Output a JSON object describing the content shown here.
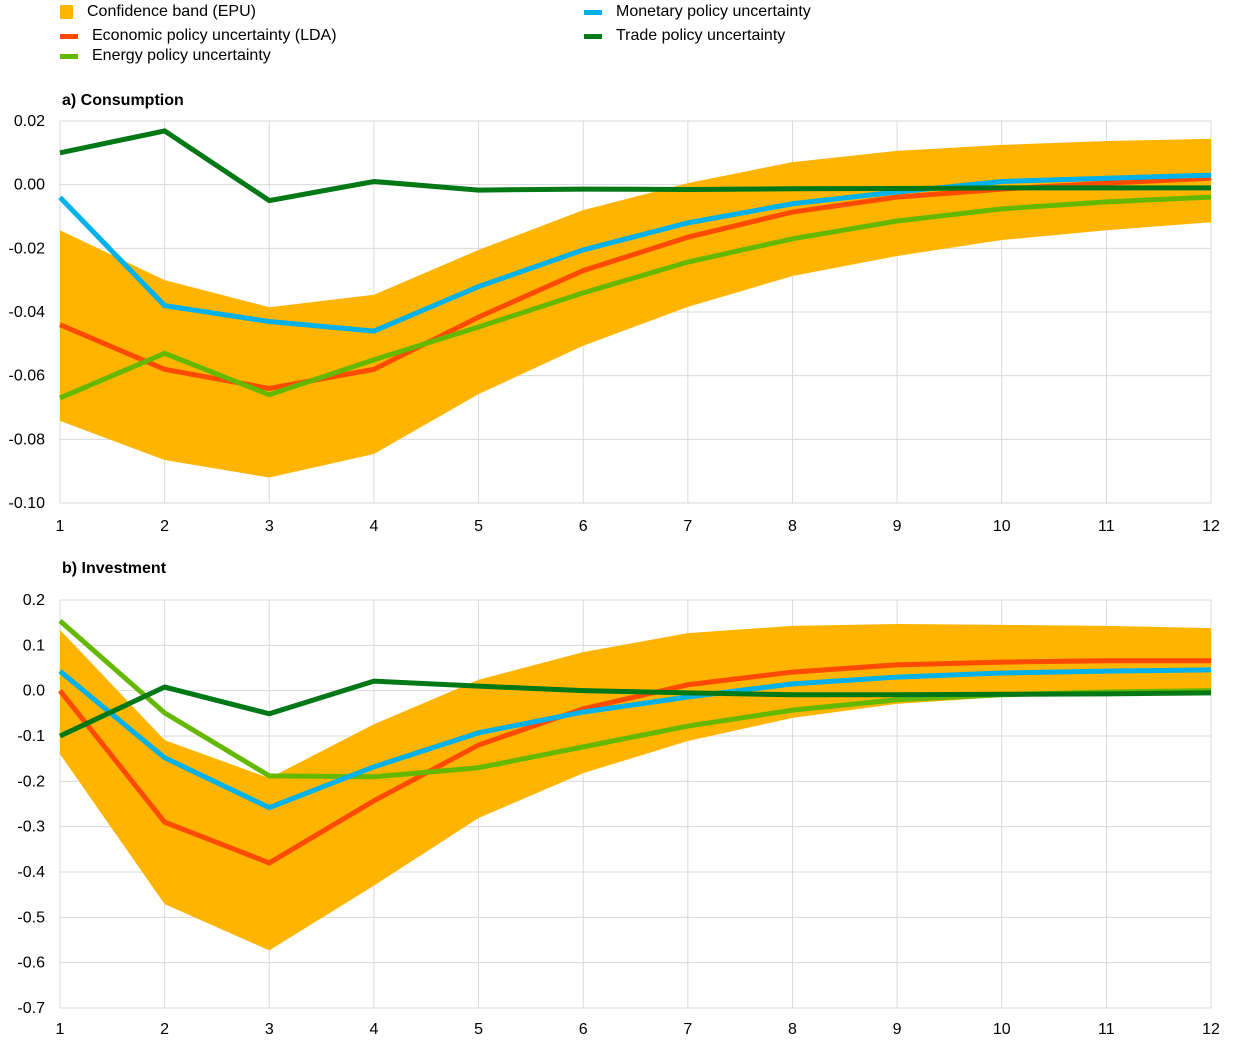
{
  "legend": [
    {
      "label": "Confidence band (EPU)",
      "color": "#FFB400",
      "kind": "box"
    },
    {
      "label": "Economic policy uncertainty (LDA)",
      "color": "#FF4B00",
      "kind": "line"
    },
    {
      "label": "Energy policy uncertainty",
      "color": "#65B800",
      "kind": "line"
    },
    {
      "label": "Monetary policy uncertainty",
      "color": "#00B1EA",
      "kind": "line"
    },
    {
      "label": "Trade policy uncertainty",
      "color": "#007816",
      "kind": "line"
    }
  ],
  "chart_data": [
    {
      "type": "line",
      "title": "a) Consumption",
      "x": [
        1,
        2,
        3,
        4,
        5,
        6,
        7,
        8,
        9,
        10,
        11,
        12
      ],
      "ylim": [
        -0.1,
        0.02
      ],
      "yticks": [
        0.02,
        0.0,
        -0.02,
        -0.04,
        -0.06,
        -0.08,
        -0.1
      ],
      "ytick_labels": [
        "0.02",
        "0.00",
        "-0.02",
        "-0.04",
        "-0.06",
        "-0.08",
        "-0.10"
      ],
      "grid": true,
      "band": {
        "name": "Confidence band (EPU)",
        "color": "#FFB400",
        "upper": [
          -0.0143,
          -0.03,
          -0.0385,
          -0.0346,
          -0.0205,
          -0.008,
          0.0005,
          0.0071,
          0.0106,
          0.0125,
          0.0137,
          0.0144
        ],
        "lower": [
          -0.0742,
          -0.0865,
          -0.092,
          -0.0846,
          -0.0658,
          -0.0506,
          -0.0384,
          -0.0287,
          -0.0224,
          -0.0174,
          -0.0143,
          -0.0118
        ]
      },
      "series": [
        {
          "name": "Economic policy uncertainty (LDA)",
          "color": "#FF4B00",
          "values": [
            -0.044,
            -0.058,
            -0.064,
            -0.058,
            -0.0416,
            -0.027,
            -0.0165,
            -0.0086,
            -0.0039,
            -0.0014,
            0.0005,
            0.002
          ]
        },
        {
          "name": "Energy policy uncertainty",
          "color": "#65B800",
          "values": [
            -0.067,
            -0.053,
            -0.066,
            -0.055,
            -0.0447,
            -0.034,
            -0.0243,
            -0.017,
            -0.0114,
            -0.0076,
            -0.0054,
            -0.0039
          ]
        },
        {
          "name": "Monetary policy uncertainty",
          "color": "#00B1EA",
          "values": [
            -0.004,
            -0.038,
            -0.043,
            -0.046,
            -0.032,
            -0.0205,
            -0.012,
            -0.006,
            -0.0023,
            0.001,
            0.002,
            0.003
          ]
        },
        {
          "name": "Trade policy uncertainty",
          "color": "#007816",
          "values": [
            0.01,
            0.0169,
            -0.005,
            0.001,
            -0.0017,
            -0.0014,
            -0.0015,
            -0.0013,
            -0.0012,
            -0.001,
            -0.001,
            -0.001
          ]
        }
      ]
    },
    {
      "type": "line",
      "title": "b) Investment",
      "x": [
        1,
        2,
        3,
        4,
        5,
        6,
        7,
        8,
        9,
        10,
        11,
        12
      ],
      "ylim": [
        -0.7,
        0.2
      ],
      "yticks": [
        0.2,
        0.1,
        0.0,
        -0.1,
        -0.2,
        -0.3,
        -0.4,
        -0.5,
        -0.6,
        -0.7
      ],
      "ytick_labels": [
        "0.2",
        "0.1",
        "0.0",
        "-0.1",
        "-0.2",
        "-0.3",
        "-0.4",
        "-0.5",
        "-0.6",
        "-0.7"
      ],
      "grid": true,
      "band": {
        "name": "Confidence band (EPU)",
        "color": "#FFB400",
        "upper": [
          0.134,
          -0.109,
          -0.193,
          -0.074,
          0.024,
          0.085,
          0.127,
          0.143,
          0.147,
          0.145,
          0.143,
          0.138
        ],
        "lower": [
          -0.14,
          -0.471,
          -0.573,
          -0.43,
          -0.281,
          -0.182,
          -0.111,
          -0.06,
          -0.029,
          -0.014,
          -0.005,
          0.0
        ]
      },
      "series": [
        {
          "name": "Economic policy uncertainty (LDA)",
          "color": "#FF4B00",
          "values": [
            0.0,
            -0.29,
            -0.38,
            -0.243,
            -0.12,
            -0.04,
            0.013,
            0.041,
            0.057,
            0.063,
            0.066,
            0.066
          ]
        },
        {
          "name": "Energy policy uncertainty",
          "color": "#65B800",
          "values": [
            0.154,
            -0.049,
            -0.188,
            -0.19,
            -0.17,
            -0.124,
            -0.078,
            -0.043,
            -0.02,
            -0.009,
            -0.003,
            0.0
          ]
        },
        {
          "name": "Monetary policy uncertainty",
          "color": "#00B1EA",
          "values": [
            0.043,
            -0.148,
            -0.258,
            -0.168,
            -0.093,
            -0.047,
            -0.014,
            0.015,
            0.03,
            0.039,
            0.043,
            0.046
          ]
        },
        {
          "name": "Trade policy uncertainty",
          "color": "#007816",
          "values": [
            -0.1,
            0.008,
            -0.051,
            0.021,
            0.01,
            0.0,
            -0.005,
            -0.009,
            -0.009,
            -0.008,
            -0.007,
            -0.005
          ]
        }
      ]
    }
  ]
}
